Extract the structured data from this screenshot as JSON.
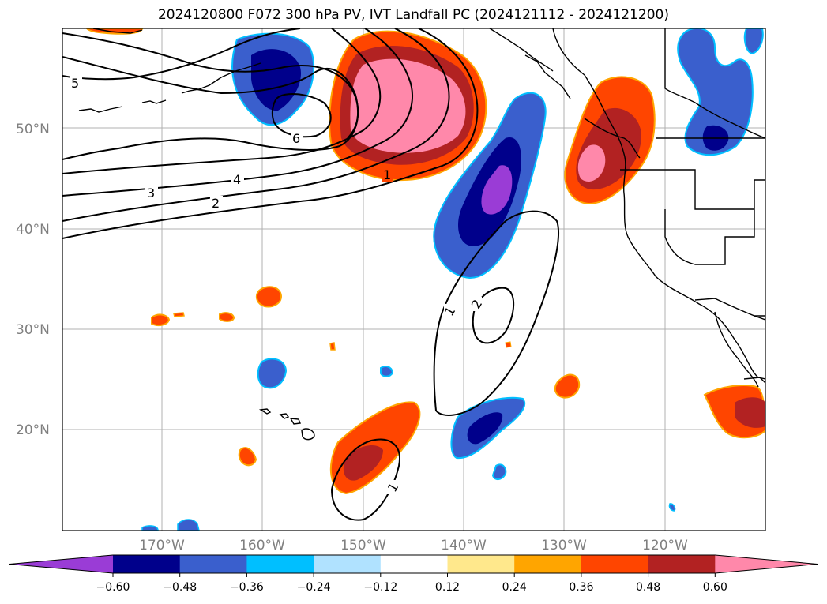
{
  "title": "2024120800 F072 300 hPa PV, IVT Landfall PC (2024121112 - 2024121200)",
  "axes": {
    "lon_ticks": [
      "170°W",
      "160°W",
      "150°W",
      "140°W",
      "130°W",
      "120°W"
    ],
    "lat_ticks": [
      "50°N",
      "40°N",
      "30°N",
      "20°N"
    ]
  },
  "contour_labels": {
    "c5": "5",
    "c6": "6",
    "c4": "4",
    "c3": "3",
    "c2": "2",
    "c1a": "1",
    "c1b": "1",
    "c2b": "2",
    "c1c": "1"
  },
  "colorbar": {
    "colors": [
      "#9a3cd6",
      "#00008b",
      "#3a5fcd",
      "#00bfff",
      "#b0e2ff",
      "#ffffff",
      "#ffe88c",
      "#ffa500",
      "#ff4500",
      "#b22222",
      "#ff88aa"
    ],
    "ticks": [
      "−0.60",
      "−0.48",
      "−0.36",
      "−0.24",
      "−0.12",
      "0.12",
      "0.24",
      "0.36",
      "0.48",
      "0.60"
    ]
  }
}
